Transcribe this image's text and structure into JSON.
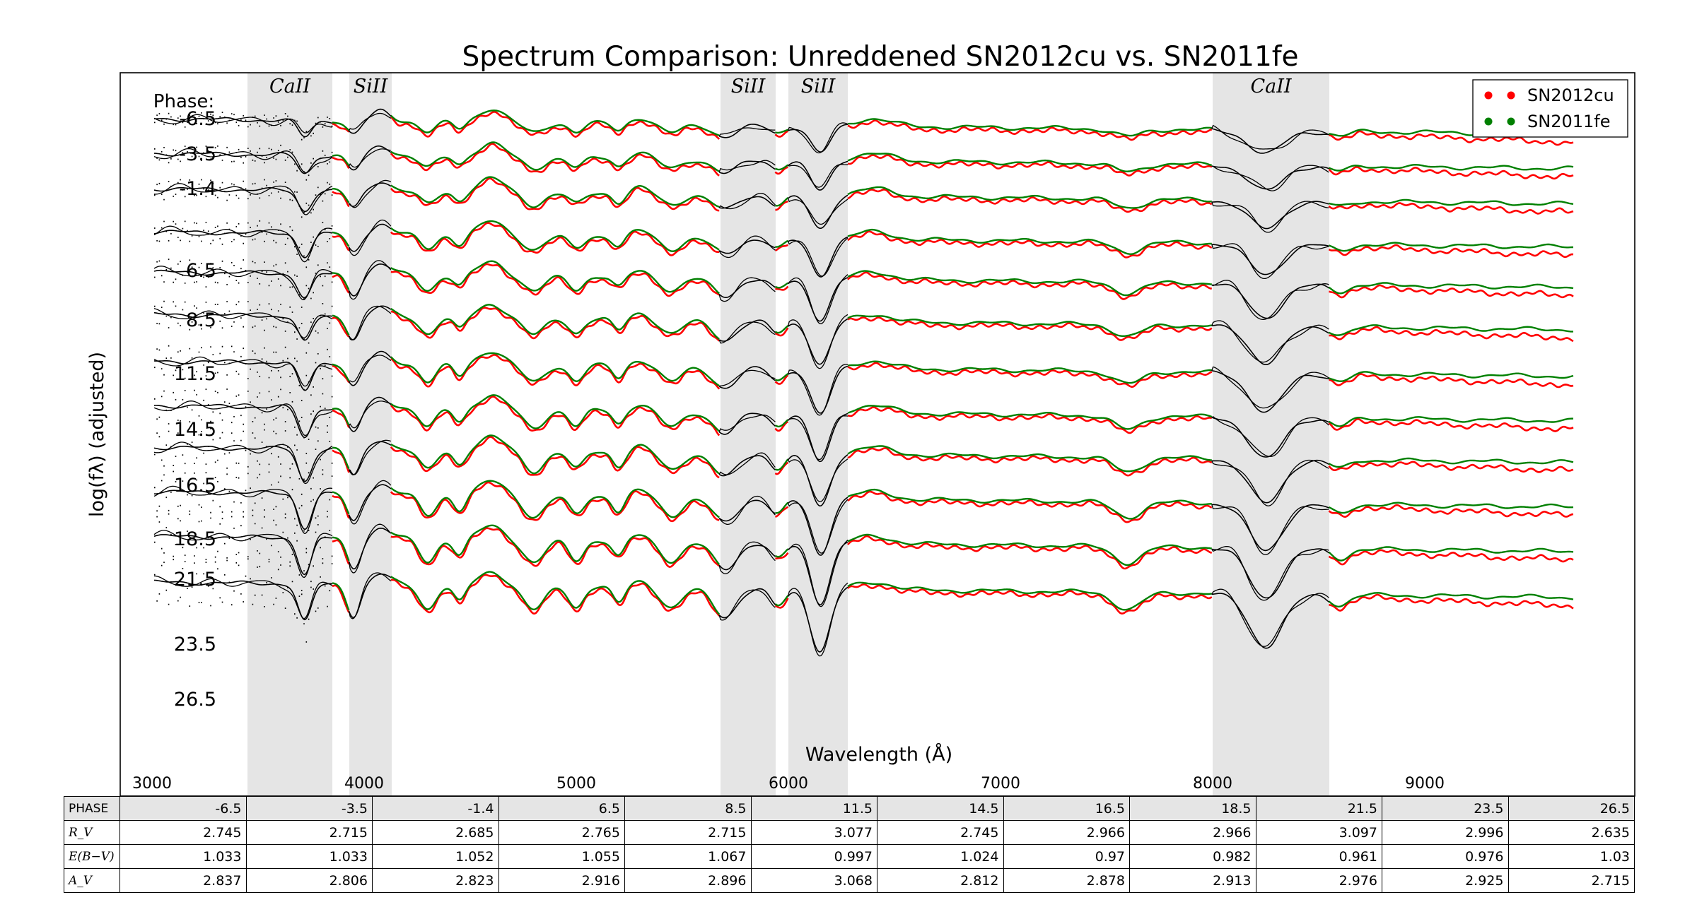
{
  "chart_data": {
    "type": "line",
    "title": "Spectrum Comparison: Unreddened SN2012cu vs. SN2011fe",
    "xlabel": "Wavelength (Å)",
    "ylabel": "log(fλ) (adjusted)",
    "xlim": [
      2850,
      9990
    ],
    "xticks": [
      "3000",
      "4000",
      "5000",
      "6000",
      "7000",
      "8000",
      "9000"
    ],
    "grid": false,
    "legend_position": "top-right",
    "legend": [
      {
        "name": "SN2012cu",
        "color": "#ff0000"
      },
      {
        "name": "SN2011fe",
        "color": "#008000"
      }
    ],
    "phase_header": "Phase:",
    "phases": [
      "-6.5",
      "-3.5",
      "-1.4",
      "6.5",
      "8.5",
      "11.5",
      "14.5",
      "16.5",
      "18.5",
      "21.5",
      "23.5",
      "26.5"
    ],
    "feature_bands": [
      {
        "label": "CaII",
        "from": 3450,
        "to": 3850
      },
      {
        "label": "SiII",
        "from": 3930,
        "to": 4130
      },
      {
        "label": "SiII",
        "from": 5680,
        "to": 5940
      },
      {
        "label": "SiII",
        "from": 6000,
        "to": 6280
      },
      {
        "label": "CaII",
        "from": 8000,
        "to": 8550
      }
    ]
  },
  "table": {
    "row_labels": {
      "phase": "PHASE",
      "rv": "R_V",
      "ebv": "E(B−V)",
      "av": "A_V"
    },
    "phase": [
      "-6.5",
      "-3.5",
      "-1.4",
      "6.5",
      "8.5",
      "11.5",
      "14.5",
      "16.5",
      "18.5",
      "21.5",
      "23.5",
      "26.5"
    ],
    "rv": [
      "2.745",
      "2.715",
      "2.685",
      "2.765",
      "2.715",
      "3.077",
      "2.745",
      "2.966",
      "2.966",
      "3.097",
      "2.996",
      "2.635"
    ],
    "ebv": [
      "1.033",
      "1.033",
      "1.052",
      "1.055",
      "1.067",
      "0.997",
      "1.024",
      "0.97",
      "0.982",
      "0.961",
      "0.976",
      "1.03"
    ],
    "av": [
      "2.837",
      "2.806",
      "2.823",
      "2.916",
      "2.896",
      "3.068",
      "2.812",
      "2.878",
      "2.913",
      "2.976",
      "2.925",
      "2.715"
    ]
  },
  "colors": {
    "sn2012cu": "#ff0000",
    "sn2011fe": "#008000",
    "band": "#e5e5e5",
    "unmatched": "#000000"
  }
}
